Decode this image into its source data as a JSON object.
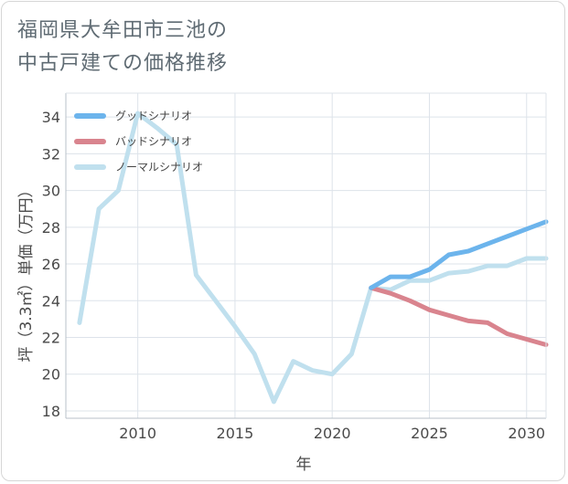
{
  "title_lines": [
    "福岡県大牟田市三池の",
    "中古戸建ての価格推移"
  ],
  "chart_data": {
    "type": "line",
    "title": "福岡県大牟田市三池の中古戸建ての価格推移",
    "xlabel": "年",
    "ylabel": "坪（3.3㎡）単価（万円）",
    "xlim": [
      2006.3,
      2031
    ],
    "ylim": [
      17.6,
      35.3
    ],
    "xticks": [
      2010,
      2015,
      2020,
      2025,
      2030
    ],
    "yticks": [
      18,
      20,
      22,
      24,
      26,
      28,
      30,
      32,
      34
    ],
    "grid": true,
    "legend_position": "top-left",
    "series": [
      {
        "name": "グッドシナリオ",
        "color": "#6cb4ec",
        "x": [
          2022,
          2023,
          2024,
          2025,
          2026,
          2027,
          2028,
          2029,
          2030,
          2031
        ],
        "y": [
          24.7,
          25.3,
          25.3,
          25.7,
          26.5,
          26.7,
          27.1,
          27.5,
          27.9,
          28.3
        ]
      },
      {
        "name": "バッドシナリオ",
        "color": "#d9848e",
        "x": [
          2022,
          2023,
          2024,
          2025,
          2026,
          2027,
          2028,
          2029,
          2030,
          2031
        ],
        "y": [
          24.7,
          24.4,
          24.0,
          23.5,
          23.2,
          22.9,
          22.8,
          22.2,
          21.9,
          21.6
        ]
      },
      {
        "name": "ノーマルシナリオ",
        "color": "#c0e0ee",
        "x": [
          2007,
          2008,
          2009,
          2010,
          2011,
          2012,
          2013,
          2014,
          2015,
          2016,
          2017,
          2018,
          2019,
          2020,
          2021,
          2022,
          2023,
          2024,
          2025,
          2026,
          2027,
          2028,
          2029,
          2030,
          2031
        ],
        "y": [
          22.8,
          29.0,
          30.0,
          34.2,
          33.4,
          32.5,
          25.4,
          24.0,
          22.6,
          21.1,
          18.5,
          20.7,
          20.2,
          20.0,
          21.1,
          24.7,
          24.6,
          25.1,
          25.1,
          25.5,
          25.6,
          25.9,
          25.9,
          26.3,
          26.3
        ]
      }
    ]
  }
}
